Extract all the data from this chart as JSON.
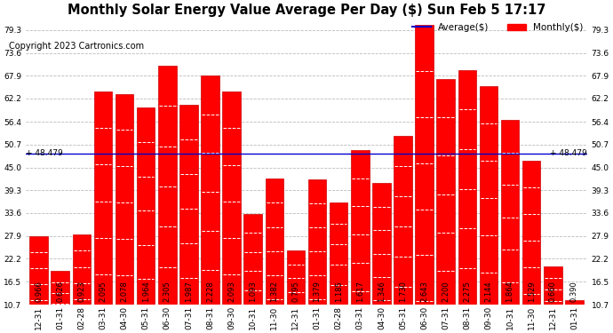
{
  "title": "Monthly Solar Energy Value Average Per Day ($) Sun Feb 5 17:17",
  "copyright": "Copyright 2023 Cartronics.com",
  "legend_average": "Average($)",
  "legend_monthly": "Monthly($)",
  "average_value": 48.479,
  "categories": [
    "12-31",
    "01-31",
    "02-28",
    "03-31",
    "04-30",
    "05-31",
    "06-30",
    "07-31",
    "08-31",
    "09-30",
    "10-31",
    "11-30",
    "12-31",
    "01-31",
    "02-28",
    "03-31",
    "04-30",
    "05-31",
    "06-30",
    "07-31",
    "08-31",
    "09-30",
    "10-31",
    "11-30",
    "12-31",
    "01-31"
  ],
  "bar_labels": [
    "0.966",
    "0.626",
    "0.923",
    "2.095",
    "2.078",
    "1.964",
    "2.305",
    "1.987",
    "2.228",
    "2.093",
    "1.093",
    "1.382",
    "0.795",
    "1.379",
    "1.185",
    "1.617",
    "1.346",
    "1.730",
    "2.643",
    "2.200",
    "2.275",
    "2.144",
    "1.864",
    "1.529",
    "0.660",
    "0.390"
  ],
  "values": [
    27.9,
    19.1,
    28.2,
    64.0,
    63.4,
    59.9,
    70.4,
    60.7,
    68.0,
    63.9,
    33.4,
    42.2,
    24.3,
    42.1,
    36.2,
    49.4,
    41.1,
    52.8,
    80.7,
    67.1,
    69.4,
    65.4,
    56.9,
    46.7,
    20.2,
    11.9
  ],
  "bar_color": "#ff0000",
  "bar_edge_color": "#cc0000",
  "avg_line_color": "#0000cc",
  "background_color": "#ffffff",
  "grid_color": "#bbbbbb",
  "ylim_min": 10.7,
  "ylim_max": 82.0,
  "yticks": [
    10.7,
    16.5,
    22.2,
    27.9,
    33.6,
    39.3,
    45.0,
    50.7,
    56.4,
    62.2,
    67.9,
    73.6,
    79.3
  ],
  "title_fontsize": 10.5,
  "copyright_fontsize": 7,
  "label_fontsize": 6,
  "tick_fontsize": 6.5,
  "avg_label_fontsize": 6.5
}
